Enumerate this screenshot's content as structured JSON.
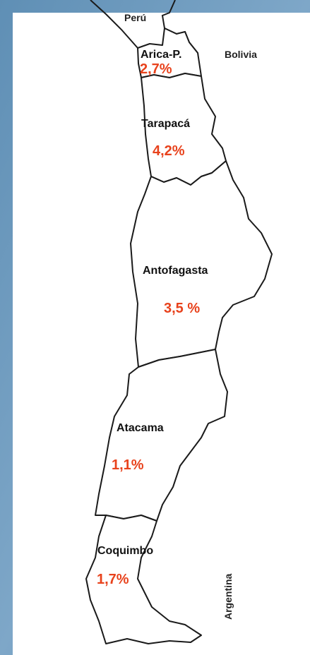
{
  "countries": {
    "north": "Perú",
    "east": "Bolivia",
    "southeast": "Argentina"
  },
  "regions": [
    {
      "name": "Arica-P.",
      "share": "2,7%"
    },
    {
      "name": "Tarapacá",
      "share": "4,2%"
    },
    {
      "name": "Antofagasta",
      "share": "3,5 %"
    },
    {
      "name": "Atacama",
      "share": "1,1%"
    },
    {
      "name": "Coquimbo",
      "share": "1,7%"
    }
  ]
}
